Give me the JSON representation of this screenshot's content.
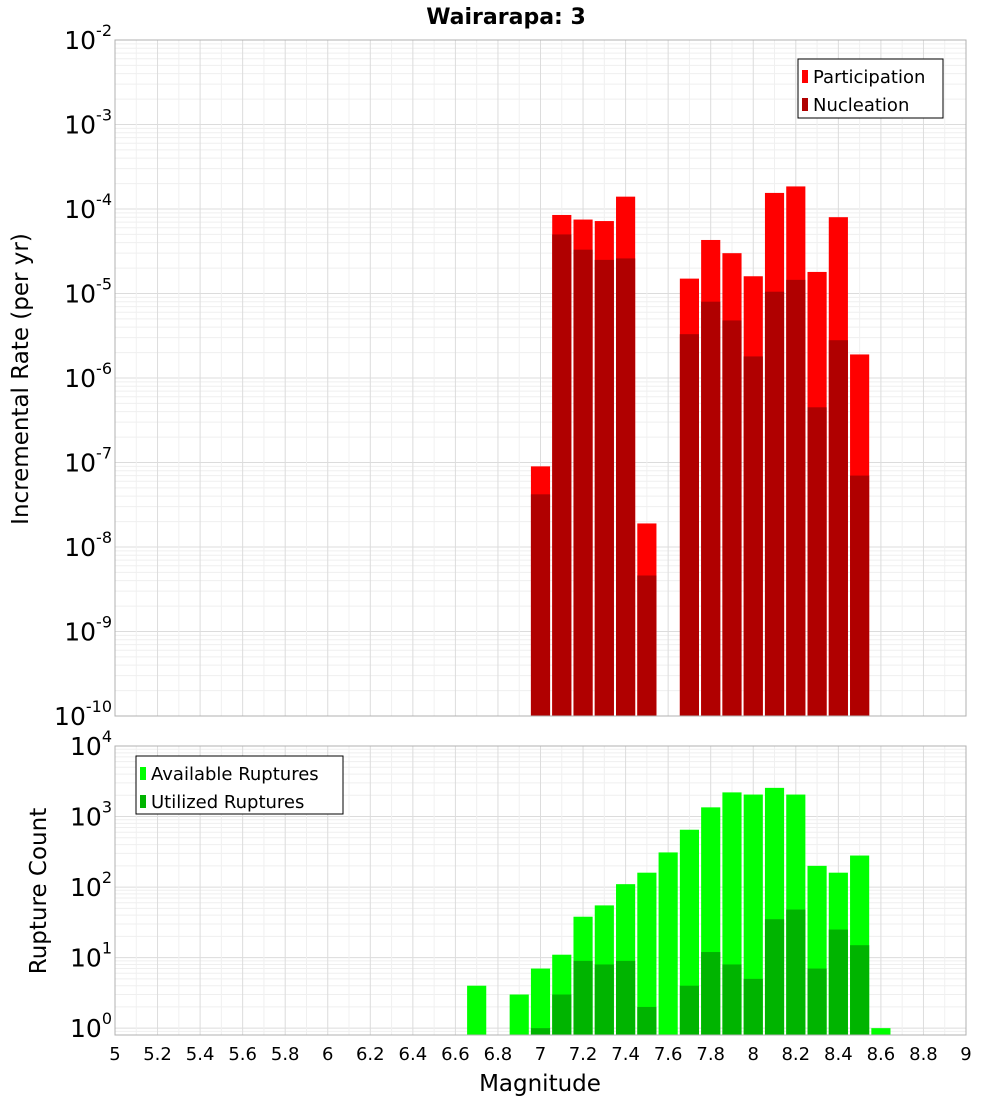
{
  "chart_data": [
    {
      "type": "bar",
      "title": "Wairarapa: 3",
      "xlabel": "",
      "ylabel": "Incremental Rate (per yr)",
      "yscale": "log",
      "ylim": [
        1e-10,
        0.01
      ],
      "xlim": [
        5,
        9
      ],
      "grid": true,
      "legend_position": "top-right",
      "bar_width": 0.09,
      "y_ticks": [
        {
          "base": "10",
          "exp": "-2",
          "value": 0.01
        },
        {
          "base": "10",
          "exp": "-3",
          "value": 0.001
        },
        {
          "base": "10",
          "exp": "-4",
          "value": 0.0001
        },
        {
          "base": "10",
          "exp": "-5",
          "value": 1e-05
        },
        {
          "base": "10",
          "exp": "-6",
          "value": 1e-06
        },
        {
          "base": "10",
          "exp": "-7",
          "value": 1e-07
        },
        {
          "base": "10",
          "exp": "-8",
          "value": 1e-08
        },
        {
          "base": "10",
          "exp": "-9",
          "value": 1e-09
        },
        {
          "base": "10",
          "exp": "-10",
          "value": 1e-10
        }
      ],
      "x": [
        7.0,
        7.1,
        7.2,
        7.3,
        7.4,
        7.5,
        7.7,
        7.8,
        7.9,
        8.0,
        8.1,
        8.2,
        8.3,
        8.4,
        8.5
      ],
      "series": [
        {
          "name": "Participation",
          "color": "#ff0000",
          "values": [
            9e-08,
            8.5e-05,
            7.5e-05,
            7.2e-05,
            0.00014,
            1.9e-08,
            1.5e-05,
            4.3e-05,
            3e-05,
            1.6e-05,
            0.000155,
            0.000185,
            1.8e-05,
            8e-05,
            1.9e-06
          ]
        },
        {
          "name": "Nucleation",
          "color": "#b00000",
          "values": [
            4.2e-08,
            5e-05,
            3.3e-05,
            2.5e-05,
            2.6e-05,
            4.6e-09,
            3.3e-06,
            8e-06,
            4.8e-06,
            1.8e-06,
            1.05e-05,
            1.45e-05,
            4.5e-07,
            2.8e-06,
            7e-08
          ]
        }
      ]
    },
    {
      "type": "bar",
      "title": "",
      "xlabel": "Magnitude",
      "ylabel": "Rupture Count",
      "yscale": "log",
      "ylim": [
        0.8,
        10000
      ],
      "xlim": [
        5,
        9
      ],
      "grid": true,
      "legend_position": "top-left",
      "bar_width": 0.09,
      "x_ticks": [
        "5",
        "5.2",
        "5.4",
        "5.6",
        "5.8",
        "6",
        "6.2",
        "6.4",
        "6.6",
        "6.8",
        "7",
        "7.2",
        "7.4",
        "7.6",
        "7.8",
        "8",
        "8.2",
        "8.4",
        "8.6",
        "8.8",
        "9"
      ],
      "y_ticks": [
        {
          "base": "10",
          "exp": "4",
          "value": 10000
        },
        {
          "base": "10",
          "exp": "3",
          "value": 1000
        },
        {
          "base": "10",
          "exp": "2",
          "value": 100
        },
        {
          "base": "10",
          "exp": "1",
          "value": 10
        },
        {
          "base": "10",
          "exp": "0",
          "value": 1
        }
      ],
      "x": [
        6.7,
        6.9,
        7.0,
        7.1,
        7.2,
        7.3,
        7.4,
        7.5,
        7.6,
        7.7,
        7.8,
        7.9,
        8.0,
        8.1,
        8.2,
        8.3,
        8.4,
        8.5,
        8.6
      ],
      "series": [
        {
          "name": "Available Ruptures",
          "color": "#00ff00",
          "values": [
            4,
            3,
            7,
            11,
            38,
            55,
            110,
            160,
            310,
            650,
            1350,
            2200,
            2050,
            2550,
            2050,
            200,
            160,
            280,
            1
          ]
        },
        {
          "name": "Utilized Ruptures",
          "color": "#00b400",
          "values": [
            0,
            0,
            1,
            3,
            9,
            8,
            9,
            2,
            0,
            4,
            12,
            8,
            5,
            35,
            48,
            7,
            25,
            15,
            0
          ]
        }
      ]
    }
  ]
}
